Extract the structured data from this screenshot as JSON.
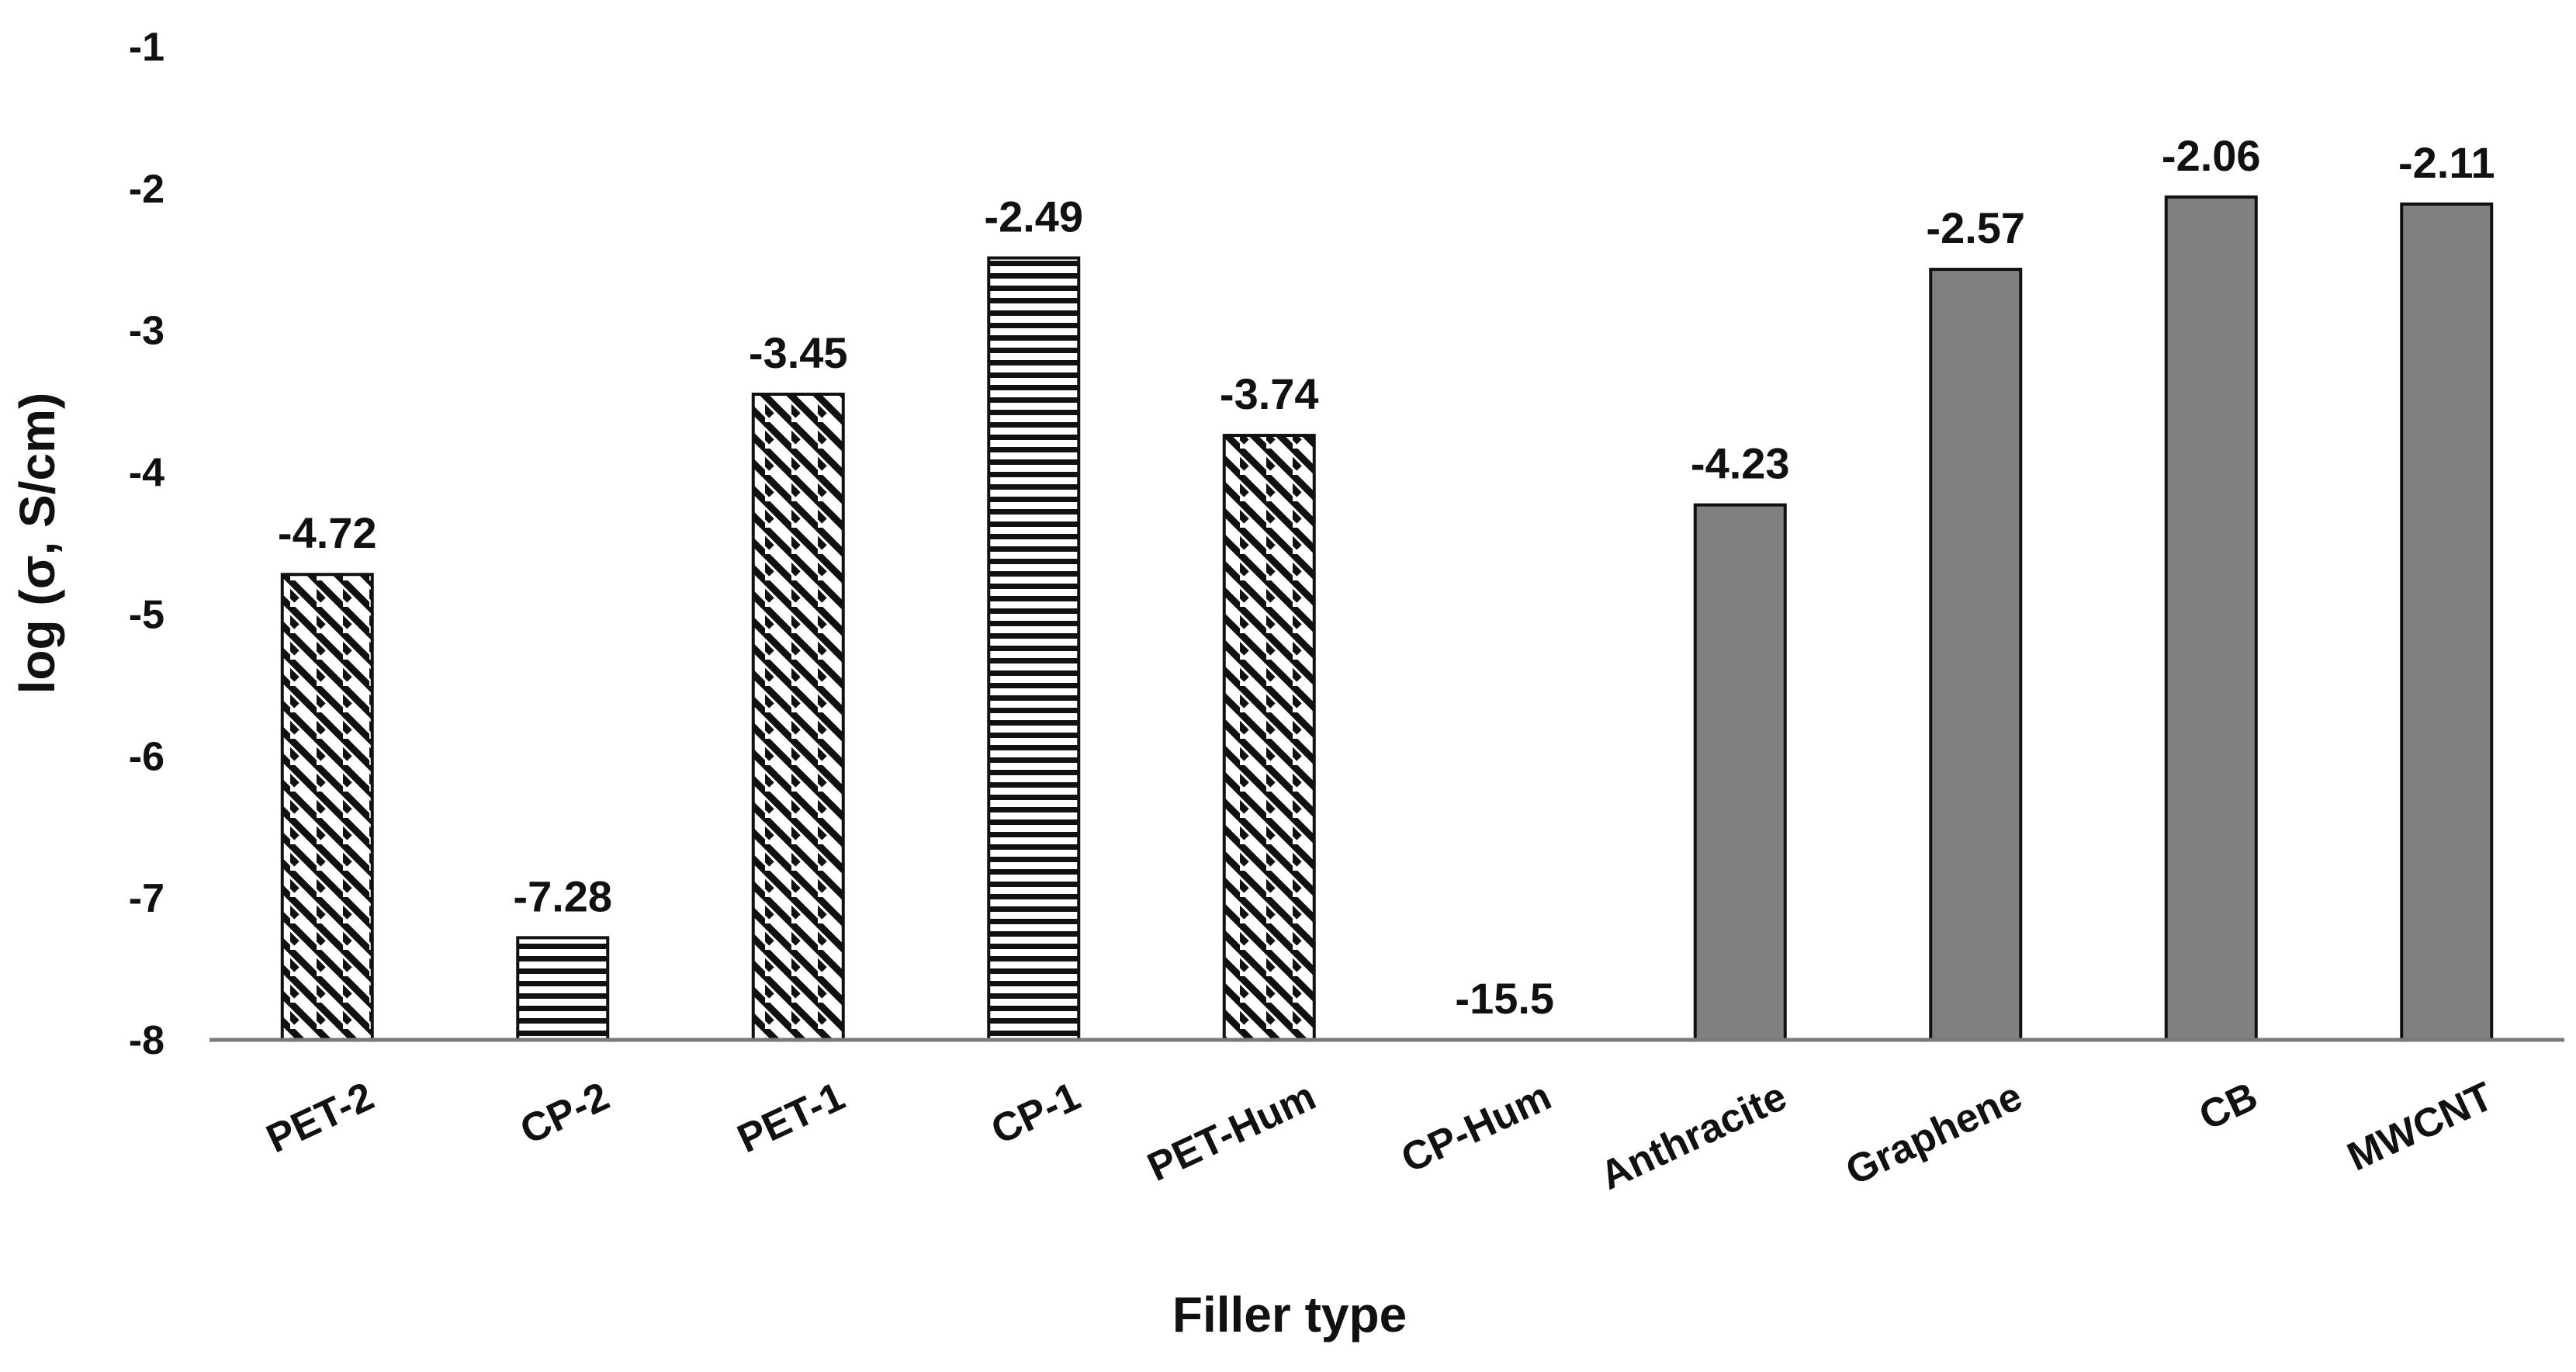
{
  "chart_data": {
    "type": "bar",
    "title": "",
    "xlabel": "Filler type",
    "ylabel": "log (σ,  S/cm)",
    "ylim": [
      -8,
      -1
    ],
    "yticks": [
      "-1",
      "-2",
      "-3",
      "-4",
      "-5",
      "-6",
      "-7",
      "-8"
    ],
    "grid": false,
    "legend": "none",
    "categories": [
      "PET-2",
      "CP-2",
      "PET-1",
      "CP-1",
      "PET-Hum",
      "CP-Hum",
      "Anthracite",
      "Graphene",
      "CB",
      "MWCNT"
    ],
    "values": [
      -4.72,
      -7.28,
      -3.45,
      -2.49,
      -3.74,
      -15.5,
      -4.23,
      -2.57,
      -2.06,
      -2.11
    ],
    "data_labels": [
      "-4.72",
      "-7.28",
      "-3.45",
      "-2.49",
      "-3.74",
      "-15.5",
      "-4.23",
      "-2.57",
      "-2.06",
      "-2.11"
    ],
    "fill_styles": [
      "diagonal",
      "horizontal",
      "diagonal",
      "horizontal",
      "diagonal",
      "horizontal",
      "solid",
      "solid",
      "solid",
      "solid"
    ],
    "colors": {
      "solid": "#808080",
      "stroke": "#111111",
      "hatch": "#111111",
      "background": "#ffffff"
    }
  }
}
